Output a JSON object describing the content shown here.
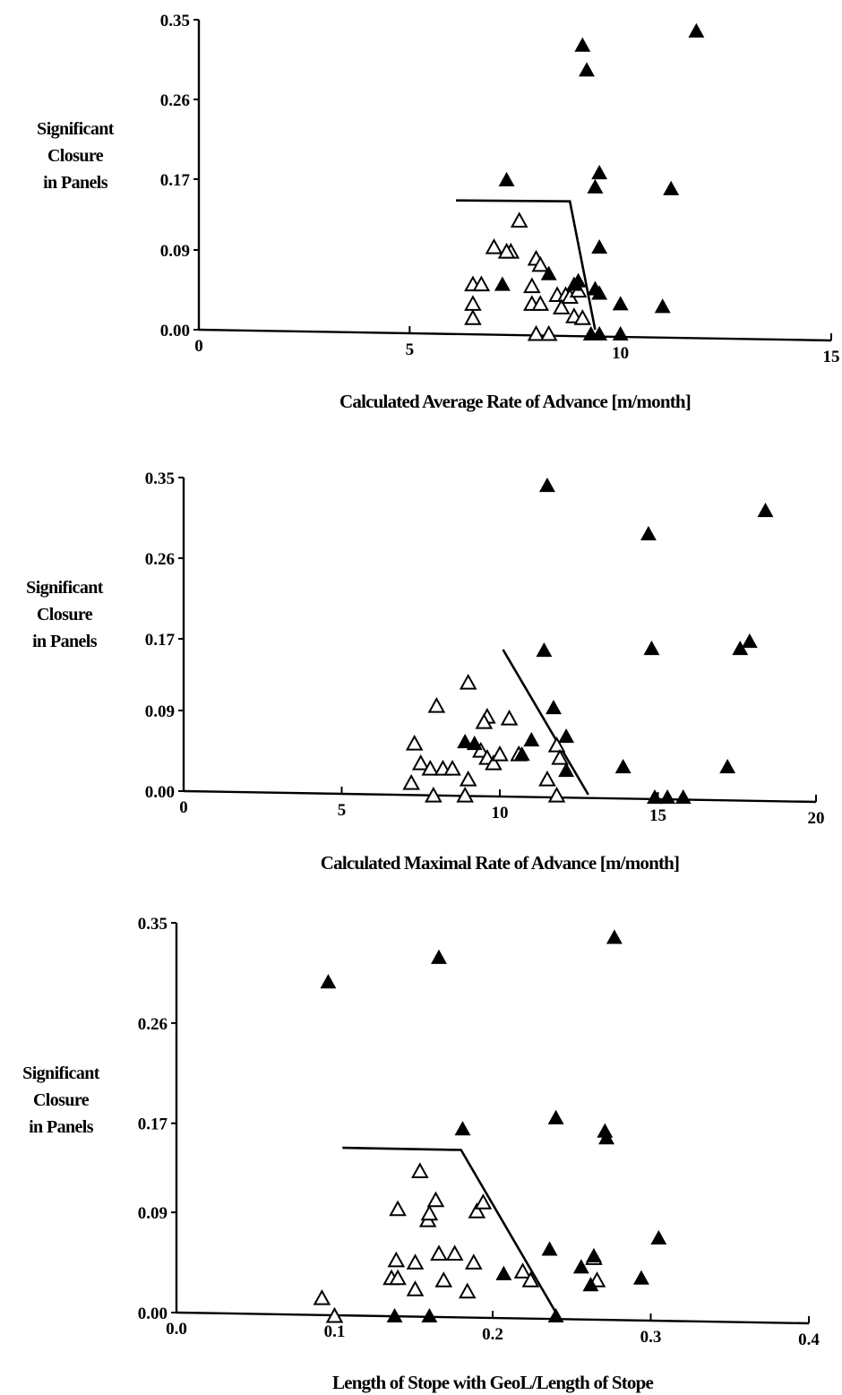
{
  "chart_data": [
    {
      "type": "scatter",
      "ylabel": [
        "Significant",
        "Closure",
        "in Panels"
      ],
      "xlabel": "Calculated Average Rate of Advance [m/month]",
      "xlim": [
        0,
        15
      ],
      "ylim": [
        0,
        0.35
      ],
      "xticks": [
        0,
        5,
        10,
        15
      ],
      "xtick_labels": [
        "0",
        "5",
        "10",
        "15"
      ],
      "yticks": [
        0,
        0.09,
        0.17,
        0.26,
        0.35
      ],
      "ytick_labels": [
        "0.00",
        "0.09",
        "0.17",
        "0.26",
        "0.35"
      ],
      "boundary": [
        [
          6.1,
          0.146
        ],
        [
          8.8,
          0.145
        ],
        [
          9.4,
          0.0
        ]
      ],
      "series": [
        {
          "marker": "open-triangle",
          "points": [
            [
              6.5,
              0.05
            ],
            [
              6.7,
              0.05
            ],
            [
              6.5,
              0.028
            ],
            [
              6.5,
              0.012
            ],
            [
              7.0,
              0.092
            ],
            [
              7.4,
              0.087
            ],
            [
              7.3,
              0.087
            ],
            [
              7.6,
              0.122
            ],
            [
              8.0,
              0.079
            ],
            [
              7.9,
              0.048
            ],
            [
              8.1,
              0.072
            ],
            [
              7.9,
              0.028
            ],
            [
              8.1,
              0.028
            ],
            [
              8.0,
              -0.006
            ],
            [
              8.3,
              -0.006
            ],
            [
              8.5,
              0.038
            ],
            [
              8.7,
              0.038
            ],
            [
              8.6,
              0.024
            ],
            [
              8.8,
              0.036
            ],
            [
              8.9,
              0.014
            ],
            [
              9.0,
              0.043
            ],
            [
              9.1,
              0.012
            ]
          ]
        },
        {
          "marker": "filled-triangle",
          "points": [
            [
              7.3,
              0.168
            ],
            [
              7.2,
              0.05
            ],
            [
              8.3,
              0.062
            ],
            [
              8.9,
              0.05
            ],
            [
              9.0,
              0.054
            ],
            [
              9.1,
              0.32
            ],
            [
              9.2,
              0.292
            ],
            [
              9.4,
              0.16
            ],
            [
              9.5,
              0.176
            ],
            [
              9.4,
              0.045
            ],
            [
              9.5,
              0.092
            ],
            [
              9.5,
              0.04
            ],
            [
              10.0,
              0.028
            ],
            [
              11.0,
              0.025
            ],
            [
              11.2,
              0.158
            ],
            [
              11.8,
              0.336
            ],
            [
              9.3,
              -0.006
            ],
            [
              9.5,
              -0.006
            ],
            [
              10.0,
              -0.006
            ]
          ]
        }
      ]
    },
    {
      "type": "scatter",
      "ylabel": [
        "Significant",
        "Closure",
        "in Panels"
      ],
      "xlabel": "Calculated Maximal Rate of Advance [m/month]",
      "xlim": [
        0,
        20
      ],
      "ylim": [
        0,
        0.35
      ],
      "xticks": [
        0,
        5,
        10,
        15,
        20
      ],
      "xtick_labels": [
        "0",
        "5",
        "10",
        "15",
        "20"
      ],
      "yticks": [
        0,
        0.09,
        0.17,
        0.26,
        0.35
      ],
      "ytick_labels": [
        "0.00",
        "0.09",
        "0.17",
        "0.26",
        "0.35"
      ],
      "boundary": [
        [
          10.1,
          0.158
        ],
        [
          12.8,
          -0.004
        ]
      ],
      "series": [
        {
          "marker": "open-triangle",
          "points": [
            [
              7.3,
              0.052
            ],
            [
              7.2,
              0.008
            ],
            [
              7.5,
              0.03
            ],
            [
              7.8,
              0.024
            ],
            [
              8.2,
              0.024
            ],
            [
              8.5,
              0.024
            ],
            [
              7.9,
              -0.006
            ],
            [
              8.0,
              0.094
            ],
            [
              8.9,
              -0.006
            ],
            [
              9.0,
              0.012
            ],
            [
              9.0,
              0.12
            ],
            [
              9.6,
              0.082
            ],
            [
              9.5,
              0.076
            ],
            [
              9.4,
              0.044
            ],
            [
              9.6,
              0.036
            ],
            [
              9.8,
              0.03
            ],
            [
              10.0,
              0.04
            ],
            [
              10.3,
              0.08
            ],
            [
              10.6,
              0.04
            ],
            [
              11.5,
              0.012
            ],
            [
              11.8,
              0.05
            ],
            [
              11.9,
              0.036
            ],
            [
              11.8,
              -0.006
            ]
          ]
        },
        {
          "marker": "filled-triangle",
          "points": [
            [
              8.9,
              0.054
            ],
            [
              9.2,
              0.052
            ],
            [
              10.7,
              0.04
            ],
            [
              11.0,
              0.056
            ],
            [
              11.4,
              0.156
            ],
            [
              11.5,
              0.34
            ],
            [
              11.7,
              0.092
            ],
            [
              12.1,
              0.06
            ],
            [
              12.1,
              0.022
            ],
            [
              13.9,
              0.026
            ],
            [
              14.7,
              0.286
            ],
            [
              14.8,
              0.158
            ],
            [
              14.9,
              -0.008
            ],
            [
              15.3,
              -0.008
            ],
            [
              15.8,
              -0.008
            ],
            [
              17.2,
              0.026
            ],
            [
              17.6,
              0.158
            ],
            [
              17.9,
              0.166
            ],
            [
              18.4,
              0.312
            ]
          ]
        }
      ]
    },
    {
      "type": "scatter",
      "ylabel": [
        "Significant",
        "Closure",
        "in Panels"
      ],
      "xlabel": "Length of Stope with GeoL/Length of Stope",
      "xlim": [
        0.0,
        0.4
      ],
      "ylim": [
        0,
        0.35
      ],
      "xticks": [
        0.0,
        0.1,
        0.2,
        0.3,
        0.4
      ],
      "xtick_labels": [
        "0.0",
        "0.1",
        "0.2",
        "0.3",
        "0.4"
      ],
      "yticks": [
        0,
        0.09,
        0.17,
        0.26,
        0.35
      ],
      "ytick_labels": [
        "0.00",
        "0.09",
        "0.17",
        "0.26",
        "0.35"
      ],
      "boundary": [
        [
          0.105,
          0.148
        ],
        [
          0.18,
          0.146
        ],
        [
          0.24,
          0.0
        ]
      ],
      "series": [
        {
          "marker": "open-triangle",
          "points": [
            [
              0.092,
              0.012
            ],
            [
              0.1,
              -0.004
            ],
            [
              0.136,
              0.03
            ],
            [
              0.14,
              0.03
            ],
            [
              0.139,
              0.046
            ],
            [
              0.14,
              0.092
            ],
            [
              0.151,
              0.044
            ],
            [
              0.151,
              0.02
            ],
            [
              0.154,
              0.126
            ],
            [
              0.159,
              0.082
            ],
            [
              0.16,
              0.088
            ],
            [
              0.164,
              0.1
            ],
            [
              0.166,
              0.052
            ],
            [
              0.169,
              0.028
            ],
            [
              0.176,
              0.052
            ],
            [
              0.184,
              0.018
            ],
            [
              0.188,
              0.044
            ],
            [
              0.19,
              0.09
            ],
            [
              0.194,
              0.098
            ],
            [
              0.219,
              0.036
            ],
            [
              0.224,
              0.028
            ],
            [
              0.264,
              0.048
            ],
            [
              0.266,
              0.028
            ]
          ]
        },
        {
          "marker": "filled-triangle",
          "points": [
            [
              0.096,
              0.296
            ],
            [
              0.138,
              -0.004
            ],
            [
              0.16,
              -0.004
            ],
            [
              0.166,
              0.318
            ],
            [
              0.181,
              0.164
            ],
            [
              0.207,
              0.034
            ],
            [
              0.236,
              0.056
            ],
            [
              0.24,
              0.174
            ],
            [
              0.24,
              -0.004
            ],
            [
              0.256,
              0.04
            ],
            [
              0.262,
              0.024
            ],
            [
              0.264,
              0.05
            ],
            [
              0.271,
              0.162
            ],
            [
              0.272,
              0.156
            ],
            [
              0.277,
              0.336
            ],
            [
              0.294,
              0.03
            ],
            [
              0.305,
              0.066
            ]
          ]
        }
      ]
    }
  ]
}
